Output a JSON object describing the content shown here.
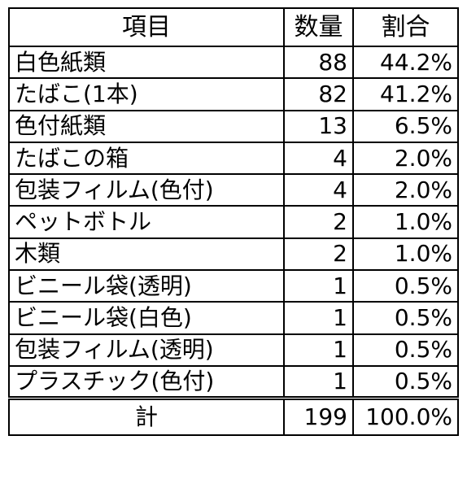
{
  "table": {
    "headers": [
      "項目",
      "数量",
      "割合"
    ],
    "rows": [
      {
        "item": "白色紙類",
        "qty": "88",
        "pct": "44.2%"
      },
      {
        "item": "たばこ(1本)",
        "qty": "82",
        "pct": "41.2%"
      },
      {
        "item": "色付紙類",
        "qty": "13",
        "pct": "6.5%"
      },
      {
        "item": "たばこの箱",
        "qty": "4",
        "pct": "2.0%"
      },
      {
        "item": "包装フィルム(色付)",
        "qty": "4",
        "pct": "2.0%"
      },
      {
        "item": "ペットボトル",
        "qty": "2",
        "pct": "1.0%"
      },
      {
        "item": "木類",
        "qty": "2",
        "pct": "1.0%"
      },
      {
        "item": "ビニール袋(透明)",
        "qty": "1",
        "pct": "0.5%"
      },
      {
        "item": "ビニール袋(白色)",
        "qty": "1",
        "pct": "0.5%"
      },
      {
        "item": "包装フィルム(透明)",
        "qty": "1",
        "pct": "0.5%"
      },
      {
        "item": "プラスチック(色付)",
        "qty": "1",
        "pct": "0.5%"
      }
    ],
    "total": {
      "item": "計",
      "qty": "199",
      "pct": "100.0%"
    }
  }
}
